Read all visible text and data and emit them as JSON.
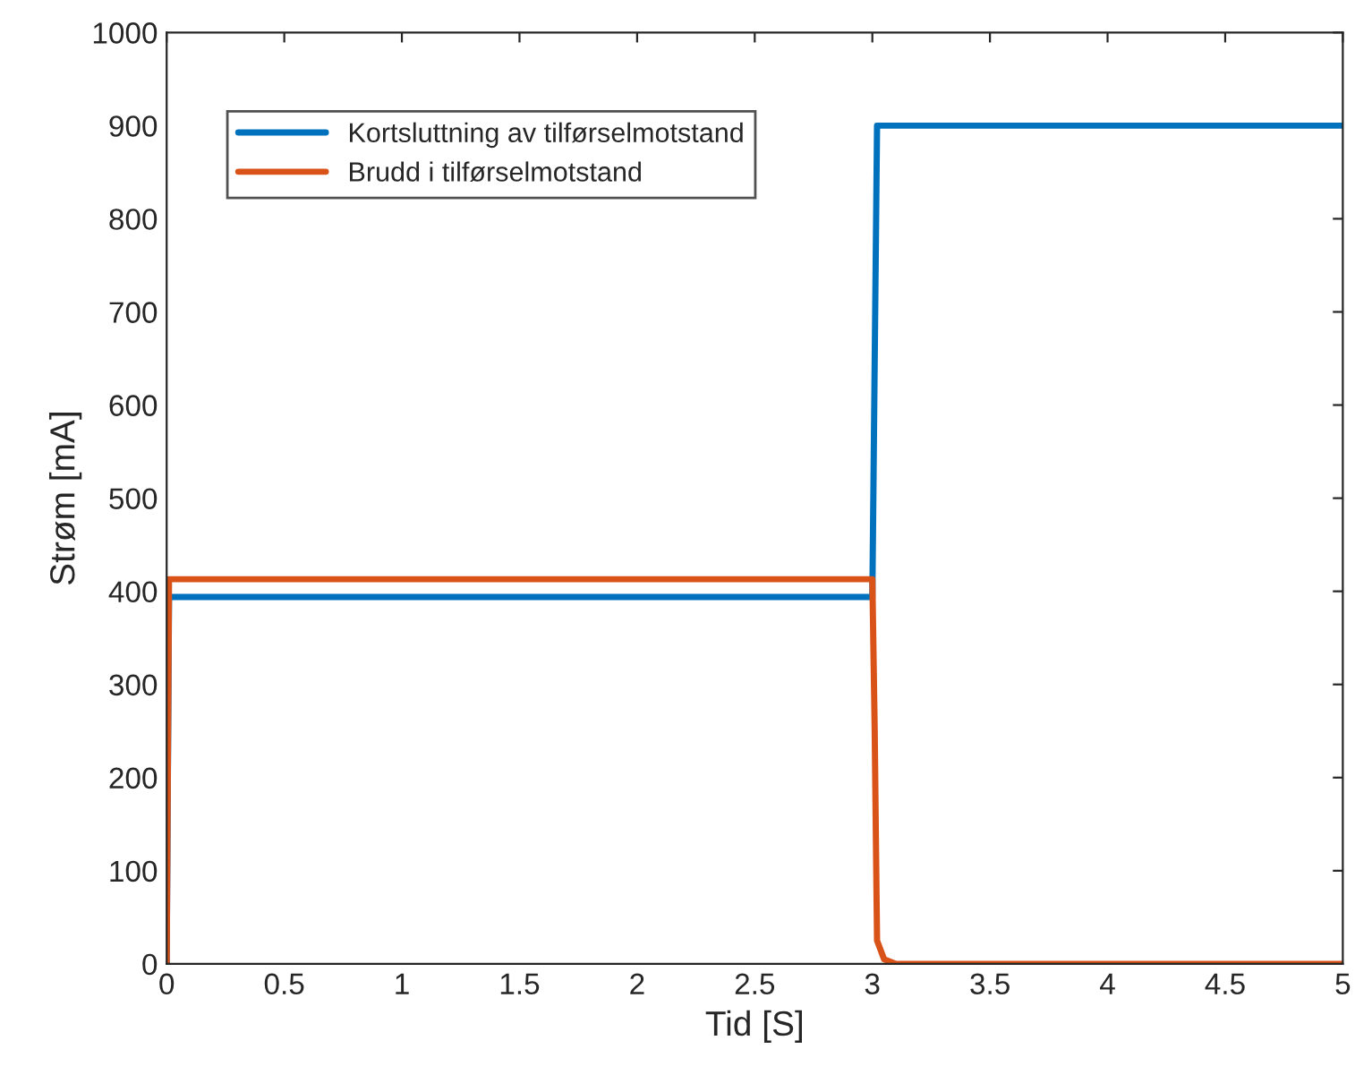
{
  "chart_data": {
    "type": "line",
    "xlabel": "Tid [S]",
    "ylabel": "Strøm [mA]",
    "xlim": [
      0,
      5
    ],
    "xticks": [
      0,
      0.5,
      1,
      1.5,
      2,
      2.5,
      3,
      3.5,
      4,
      4.5,
      5
    ],
    "ylim": [
      0,
      1000
    ],
    "yticks": [
      0,
      100,
      200,
      300,
      400,
      500,
      600,
      700,
      800,
      900,
      1000
    ],
    "grid": false,
    "legend": "top left",
    "marker": "none",
    "line_style": "solid",
    "series": [
      {
        "name": "Kortsluttning av tilførselmotstand",
        "color": "#0072bd",
        "x": [
          0,
          0.01,
          3.0,
          3.02,
          5
        ],
        "values": [
          0,
          394,
          394,
          900,
          900
        ]
      },
      {
        "name": "Brudd i tilførselmotstand",
        "color": "#d95319",
        "x": [
          0,
          0.01,
          3.0,
          3.01,
          3.02,
          3.05,
          3.1,
          5
        ],
        "values": [
          0,
          413,
          413,
          250,
          25,
          5,
          0,
          0
        ]
      }
    ]
  }
}
